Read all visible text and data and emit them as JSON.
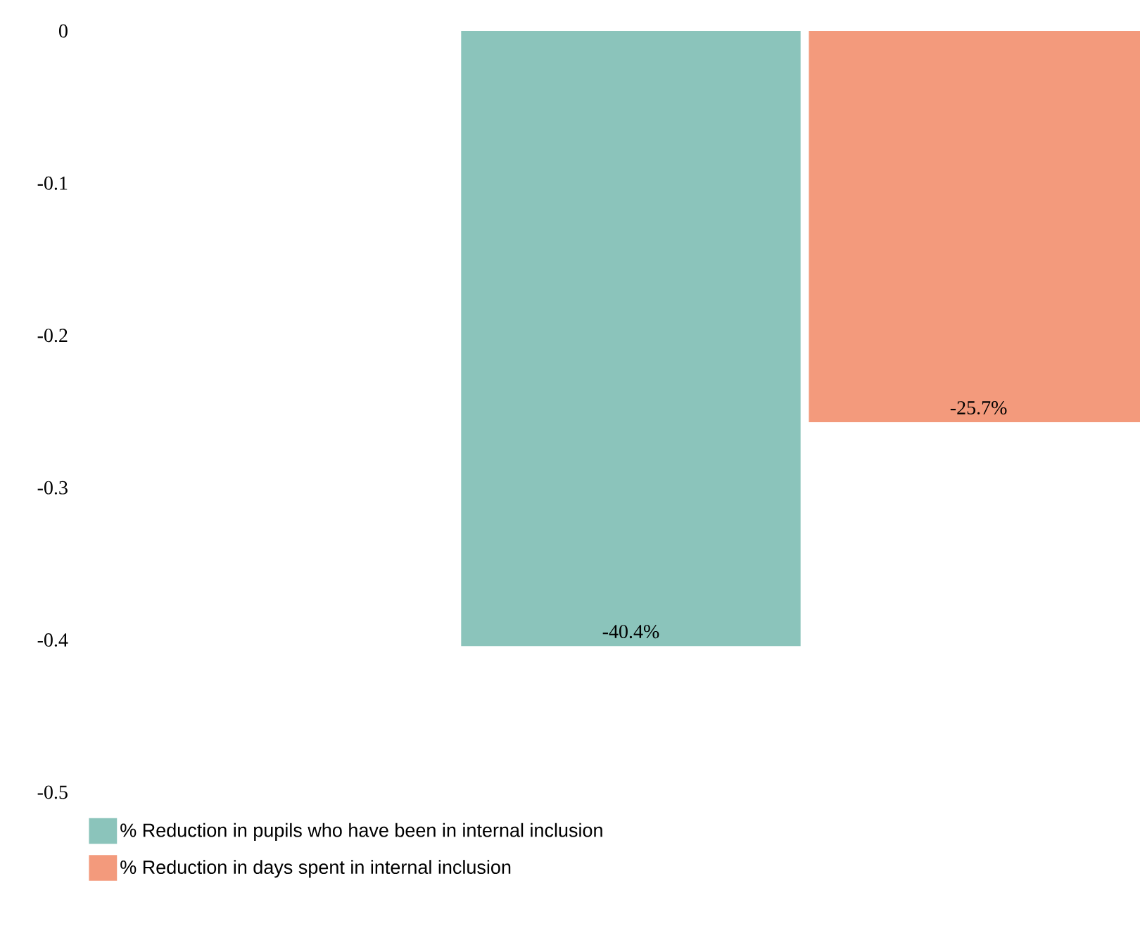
{
  "chart_data": {
    "type": "bar",
    "categories": [
      null
    ],
    "series": [
      {
        "name": "% Reduction in pupils who have been in internal inclusion",
        "color": "#8bc4bb",
        "values": [
          -0.404
        ],
        "value_labels": [
          "-40.4%"
        ]
      },
      {
        "name": "% Reduction in days spent in internal inclusion",
        "color": "#f39a7c",
        "values": [
          -0.257
        ],
        "value_labels": [
          "-25.7%"
        ]
      }
    ],
    "ylim": [
      -0.5,
      0
    ],
    "yticks": [
      -0.5,
      -0.4,
      -0.3,
      -0.2,
      -0.1,
      0
    ],
    "legend": "bottom"
  }
}
